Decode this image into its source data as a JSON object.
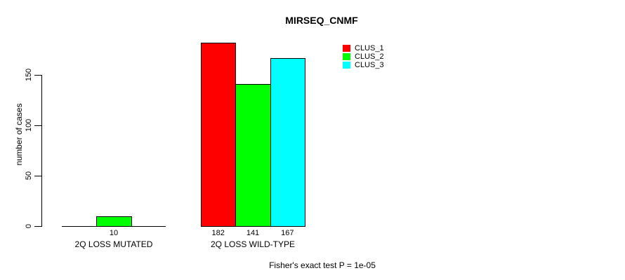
{
  "title": "MIRSEQ_CNMF",
  "y_axis": {
    "label": "number of cases"
  },
  "footer": "Fisher's exact test P = 1e-05",
  "chart_data": {
    "type": "bar",
    "title": "MIRSEQ_CNMF",
    "xlabel": "",
    "ylabel": "number of cases",
    "categories": [
      "2Q LOSS MUTATED",
      "2Q LOSS WILD-TYPE"
    ],
    "series": [
      {
        "name": "CLUS_1",
        "color": "#ff0000",
        "values": [
          0,
          182
        ]
      },
      {
        "name": "CLUS_2",
        "color": "#00ff00",
        "values": [
          10,
          141
        ]
      },
      {
        "name": "CLUS_3",
        "color": "#00ffff",
        "values": [
          0,
          167
        ]
      }
    ],
    "bar_value_labels": [
      [
        "",
        "10",
        ""
      ],
      [
        "182",
        "141",
        "167"
      ]
    ],
    "yticks": [
      0,
      50,
      100,
      150
    ],
    "ylim": [
      0,
      185
    ],
    "grid": false,
    "legend_position": "top-right",
    "annotation": "Fisher's exact test P = 1e-05"
  }
}
